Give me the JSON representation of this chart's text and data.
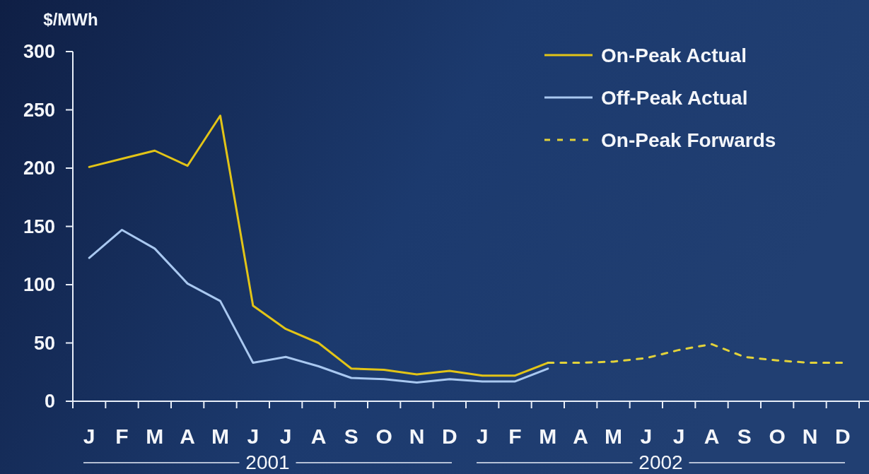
{
  "chart_data": {
    "type": "line",
    "ylabel": "$/MWh",
    "categories": [
      "J",
      "F",
      "M",
      "A",
      "M",
      "J",
      "J",
      "A",
      "S",
      "O",
      "N",
      "D",
      "J",
      "F",
      "M",
      "A",
      "M",
      "J",
      "J",
      "A",
      "S",
      "O",
      "N",
      "D"
    ],
    "series": [
      {
        "name": "On-Peak Actual",
        "color": "#e2c417",
        "values": [
          201,
          208,
          215,
          202,
          245,
          82,
          62,
          50,
          28,
          27,
          23,
          26,
          22,
          22,
          33,
          null,
          null,
          null,
          null,
          null,
          null,
          null,
          null,
          null
        ]
      },
      {
        "name": "Off-Peak Actual",
        "color": "#a9c8f0",
        "values": [
          123,
          147,
          131,
          101,
          86,
          33,
          38,
          30,
          20,
          19,
          16,
          19,
          17,
          17,
          28,
          null,
          null,
          null,
          null,
          null,
          null,
          null,
          null,
          null
        ]
      },
      {
        "name": "On-Peak Forwards",
        "color": "#e2d23a",
        "line_style": "dashed",
        "values": [
          null,
          null,
          null,
          null,
          null,
          null,
          null,
          null,
          null,
          null,
          null,
          null,
          null,
          null,
          33,
          33,
          34,
          37,
          44,
          49,
          38,
          35,
          33,
          33
        ]
      }
    ],
    "ylim": [
      0,
      300
    ],
    "yticks": [
      0,
      50,
      100,
      150,
      200,
      250,
      300
    ],
    "legend": "top right",
    "marker": "none",
    "line_style": "solid",
    "annotations": [
      "2001",
      "2002"
    ]
  }
}
